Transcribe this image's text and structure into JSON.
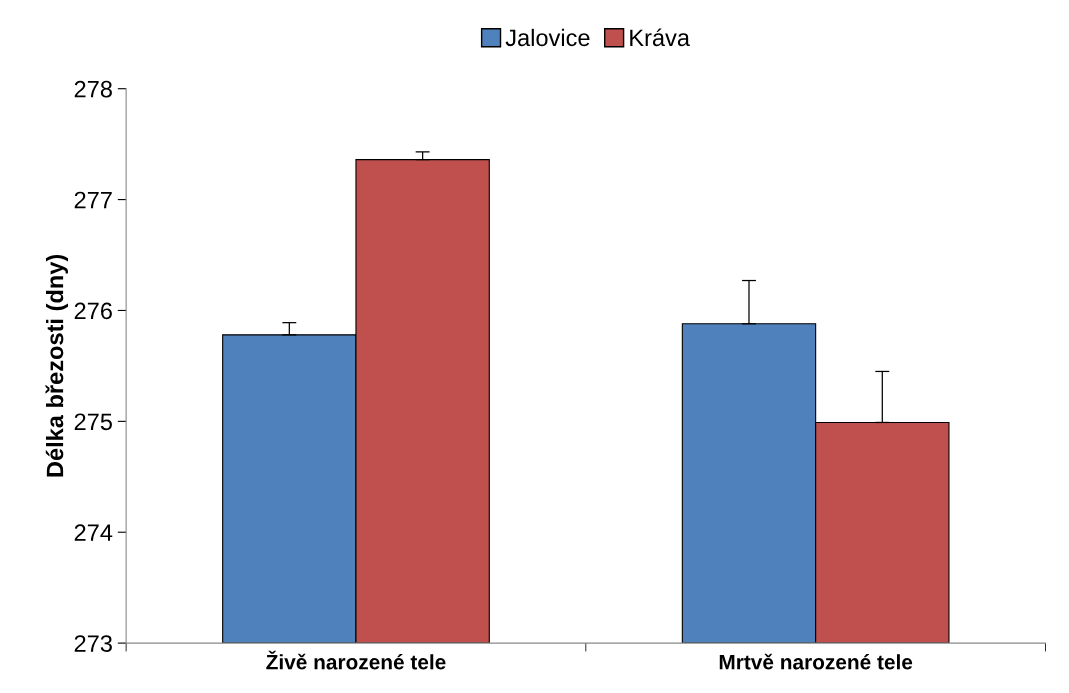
{
  "chart_data": {
    "type": "bar",
    "ylabel": "Délka březosti (dny)",
    "categories": [
      "Živě narozené tele",
      "Mrtvě narozené tele"
    ],
    "series": [
      {
        "name": "Jalovice",
        "color": "#4f81bd",
        "values": [
          275.78,
          275.88
        ],
        "errors": [
          [
            275.78,
            275.89
          ],
          [
            275.88,
            276.27
          ]
        ]
      },
      {
        "name": "Kráva",
        "color": "#c0504d",
        "values": [
          277.36,
          274.99
        ],
        "errors": [
          [
            277.36,
            277.43
          ],
          [
            274.99,
            275.45
          ]
        ]
      }
    ],
    "ylim": [
      273,
      278
    ],
    "yticks": [
      273,
      274,
      275,
      276,
      277,
      278
    ],
    "legend": "top",
    "grid": false
  }
}
